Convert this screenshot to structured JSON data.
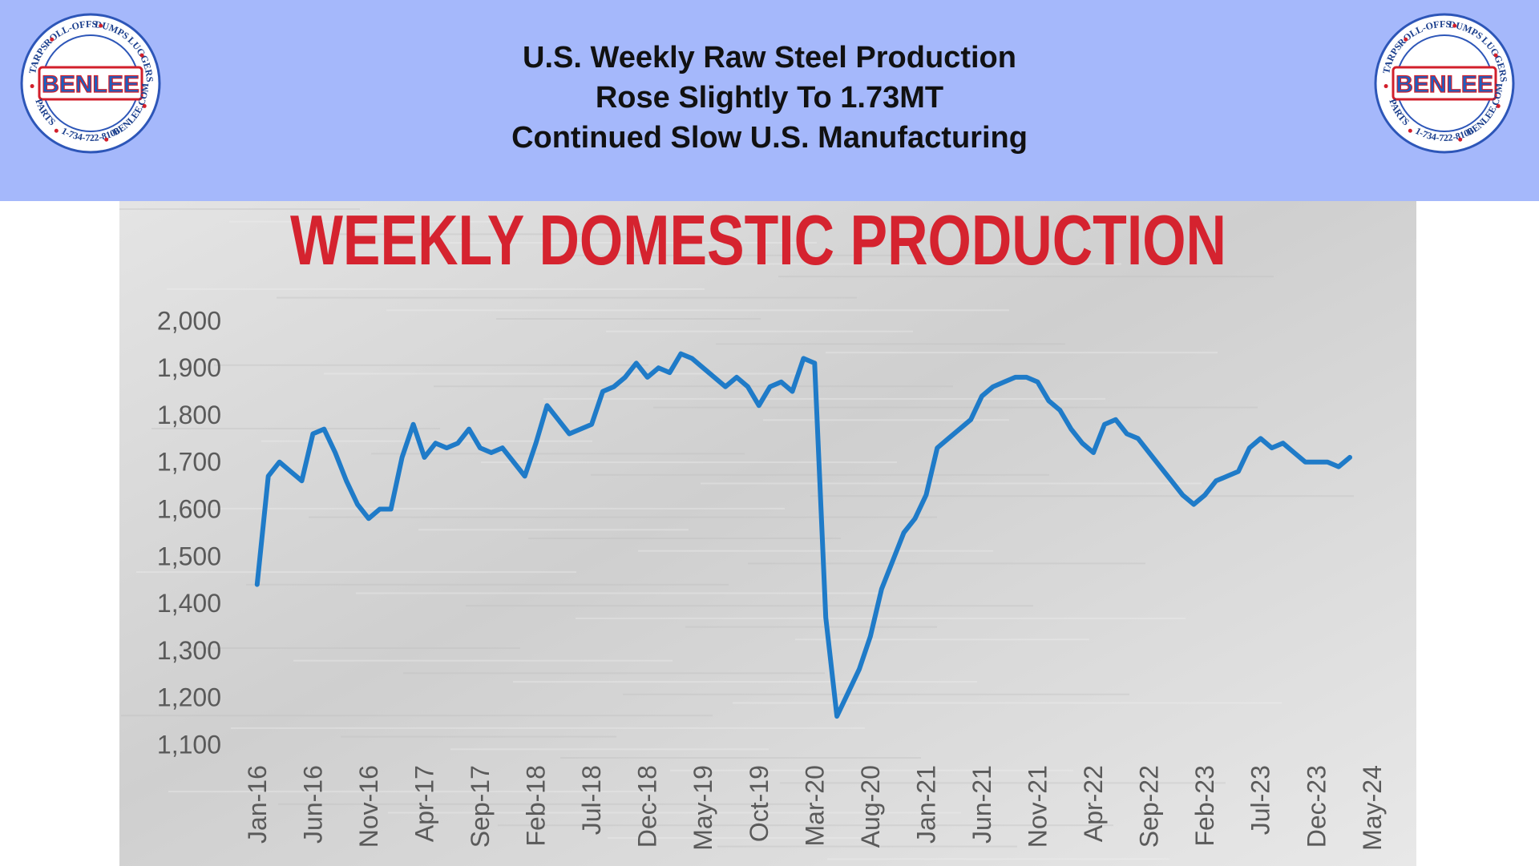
{
  "header": {
    "lines": [
      "U.S. Weekly Raw Steel Production",
      "Rose Slightly To 1.73MT",
      "Continued Slow U.S. Manufacturing"
    ]
  },
  "logo": {
    "name": "BENLEE",
    "ring": [
      "TARPS",
      "ROLL-OFFS",
      "DUMPS",
      "LUGGERS",
      "BENLEE.COM",
      "1-734-722-8100",
      "PARTS"
    ]
  },
  "chart_data": {
    "type": "line",
    "title": "WEEKLY DOMESTIC PRODUCTION",
    "categories": [
      "Jan-16",
      null,
      null,
      null,
      null,
      "Jun-16",
      null,
      null,
      null,
      null,
      "Nov-16",
      null,
      null,
      null,
      null,
      "Apr-17",
      null,
      null,
      null,
      null,
      "Sep-17",
      null,
      null,
      null,
      null,
      "Feb-18",
      null,
      null,
      null,
      null,
      "Jul-18",
      null,
      null,
      null,
      null,
      "Dec-18",
      null,
      null,
      null,
      null,
      "May-19",
      null,
      null,
      null,
      null,
      "Oct-19",
      null,
      null,
      null,
      null,
      "Mar-20",
      null,
      null,
      null,
      null,
      "Aug-20",
      null,
      null,
      null,
      null,
      "Jan-21",
      null,
      null,
      null,
      null,
      "Jun-21",
      null,
      null,
      null,
      null,
      "Nov-21",
      null,
      null,
      null,
      null,
      "Apr-22",
      null,
      null,
      null,
      null,
      "Sep-22",
      null,
      null,
      null,
      null,
      "Feb-23",
      null,
      null,
      null,
      null,
      "Jul-23",
      null,
      null,
      null,
      null,
      "Dec-23",
      null,
      null,
      null,
      null,
      "May-24"
    ],
    "series": [
      {
        "color": "#1f7bc8",
        "values": [
          1440,
          1670,
          1700,
          1680,
          1660,
          1760,
          1770,
          1720,
          1660,
          1610,
          1580,
          1600,
          1600,
          1710,
          1780,
          1710,
          1740,
          1730,
          1740,
          1770,
          1730,
          1720,
          1730,
          1700,
          1670,
          1740,
          1820,
          1790,
          1760,
          1770,
          1780,
          1850,
          1860,
          1880,
          1910,
          1880,
          1900,
          1890,
          1930,
          1920,
          1900,
          1880,
          1860,
          1880,
          1860,
          1820,
          1860,
          1870,
          1850,
          1920,
          1910,
          1370,
          1160,
          1210,
          1260,
          1330,
          1430,
          1490,
          1550,
          1580,
          1630,
          1730,
          1750,
          1770,
          1790,
          1840,
          1860,
          1870,
          1880,
          1880,
          1870,
          1830,
          1810,
          1770,
          1740,
          1720,
          1780,
          1790,
          1760,
          1750,
          1720,
          1690,
          1660,
          1630,
          1610,
          1630,
          1660,
          1670,
          1680,
          1730,
          1750,
          1730,
          1740,
          1720,
          1700,
          1700,
          1700,
          1690,
          1710,
          null,
          null
        ]
      }
    ],
    "ylim": [
      1100,
      2000
    ],
    "yticks": [
      {
        "value": 1100,
        "label": "1,100"
      },
      {
        "value": 1200,
        "label": "1,200"
      },
      {
        "value": 1300,
        "label": "1,300"
      },
      {
        "value": 1400,
        "label": "1,400"
      },
      {
        "value": 1500,
        "label": "1,500"
      },
      {
        "value": 1600,
        "label": "1,600"
      },
      {
        "value": 1700,
        "label": "1,700"
      },
      {
        "value": 1800,
        "label": "1,800"
      },
      {
        "value": 1900,
        "label": "1,900"
      },
      {
        "value": 2000,
        "label": "2,000"
      }
    ],
    "grid": false
  }
}
